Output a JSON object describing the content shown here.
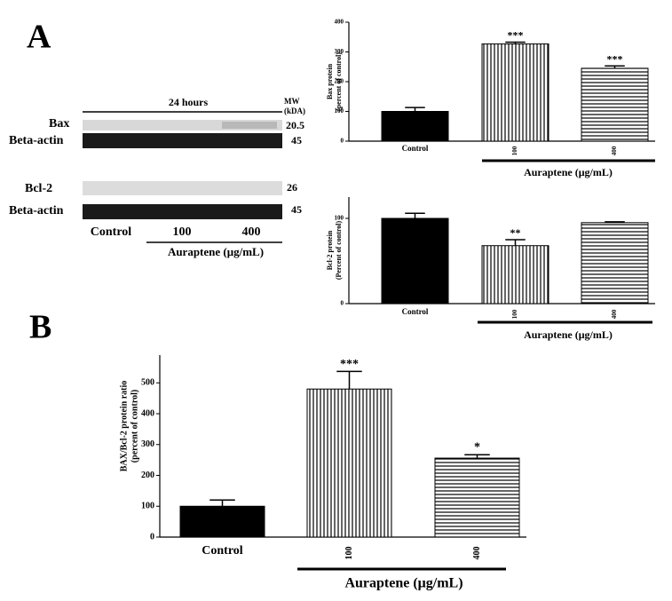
{
  "panel_labels": [
    "A",
    "B"
  ],
  "blot": {
    "header": "24 hours",
    "mw_header": [
      "MW",
      "(kDA)"
    ],
    "rows": [
      {
        "label": "Bax",
        "mw": "20.5"
      },
      {
        "label": "Beta-actin",
        "mw": "45"
      },
      {
        "label": "Bcl-2",
        "mw": "26"
      },
      {
        "label": "Beta-actin",
        "mw": "45"
      }
    ],
    "lanes": [
      "Control",
      "100",
      "400"
    ],
    "treatment": "Auraptene (μg/mL)"
  },
  "chart_data": [
    {
      "type": "bar",
      "y_label": [
        "Bax protein",
        "(percent of control)"
      ],
      "categories": [
        "Control",
        "100",
        "400"
      ],
      "values": [
        100,
        327,
        245
      ],
      "errors": [
        13,
        6,
        8
      ],
      "significance": [
        null,
        "***",
        "***"
      ],
      "patterns": [
        "solid",
        "vertical",
        "horizontal"
      ],
      "color": "#000000",
      "ylim": [
        0,
        400
      ],
      "yticks": [
        0,
        100,
        200,
        300,
        400
      ],
      "group_label": "Auraptene (μg/mL)"
    },
    {
      "type": "bar",
      "y_label": [
        "Bcl-2 protein",
        "(Percent of control)"
      ],
      "categories": [
        "Control",
        "100",
        "400"
      ],
      "values": [
        100,
        68,
        95
      ],
      "errors": [
        6,
        7,
        1
      ],
      "significance": [
        null,
        "**",
        null
      ],
      "patterns": [
        "solid",
        "vertical",
        "horizontal"
      ],
      "color": "#000000",
      "ylim": [
        0,
        125
      ],
      "yticks": [
        0,
        100
      ],
      "group_label": "Auraptene (μg/mL)"
    },
    {
      "type": "bar",
      "y_label": [
        "BAX/Bcl-2 protein ratio",
        "(percent of control)"
      ],
      "categories": [
        "Control",
        "100",
        "400"
      ],
      "values": [
        100,
        480,
        256
      ],
      "errors": [
        20,
        57,
        11
      ],
      "significance": [
        null,
        "***",
        "*"
      ],
      "patterns": [
        "solid",
        "vertical",
        "horizontal"
      ],
      "color": "#000000",
      "ylim": [
        0,
        590
      ],
      "yticks": [
        0,
        100,
        200,
        300,
        400,
        500
      ],
      "group_label": "Auraptene (μg/mL)"
    }
  ]
}
